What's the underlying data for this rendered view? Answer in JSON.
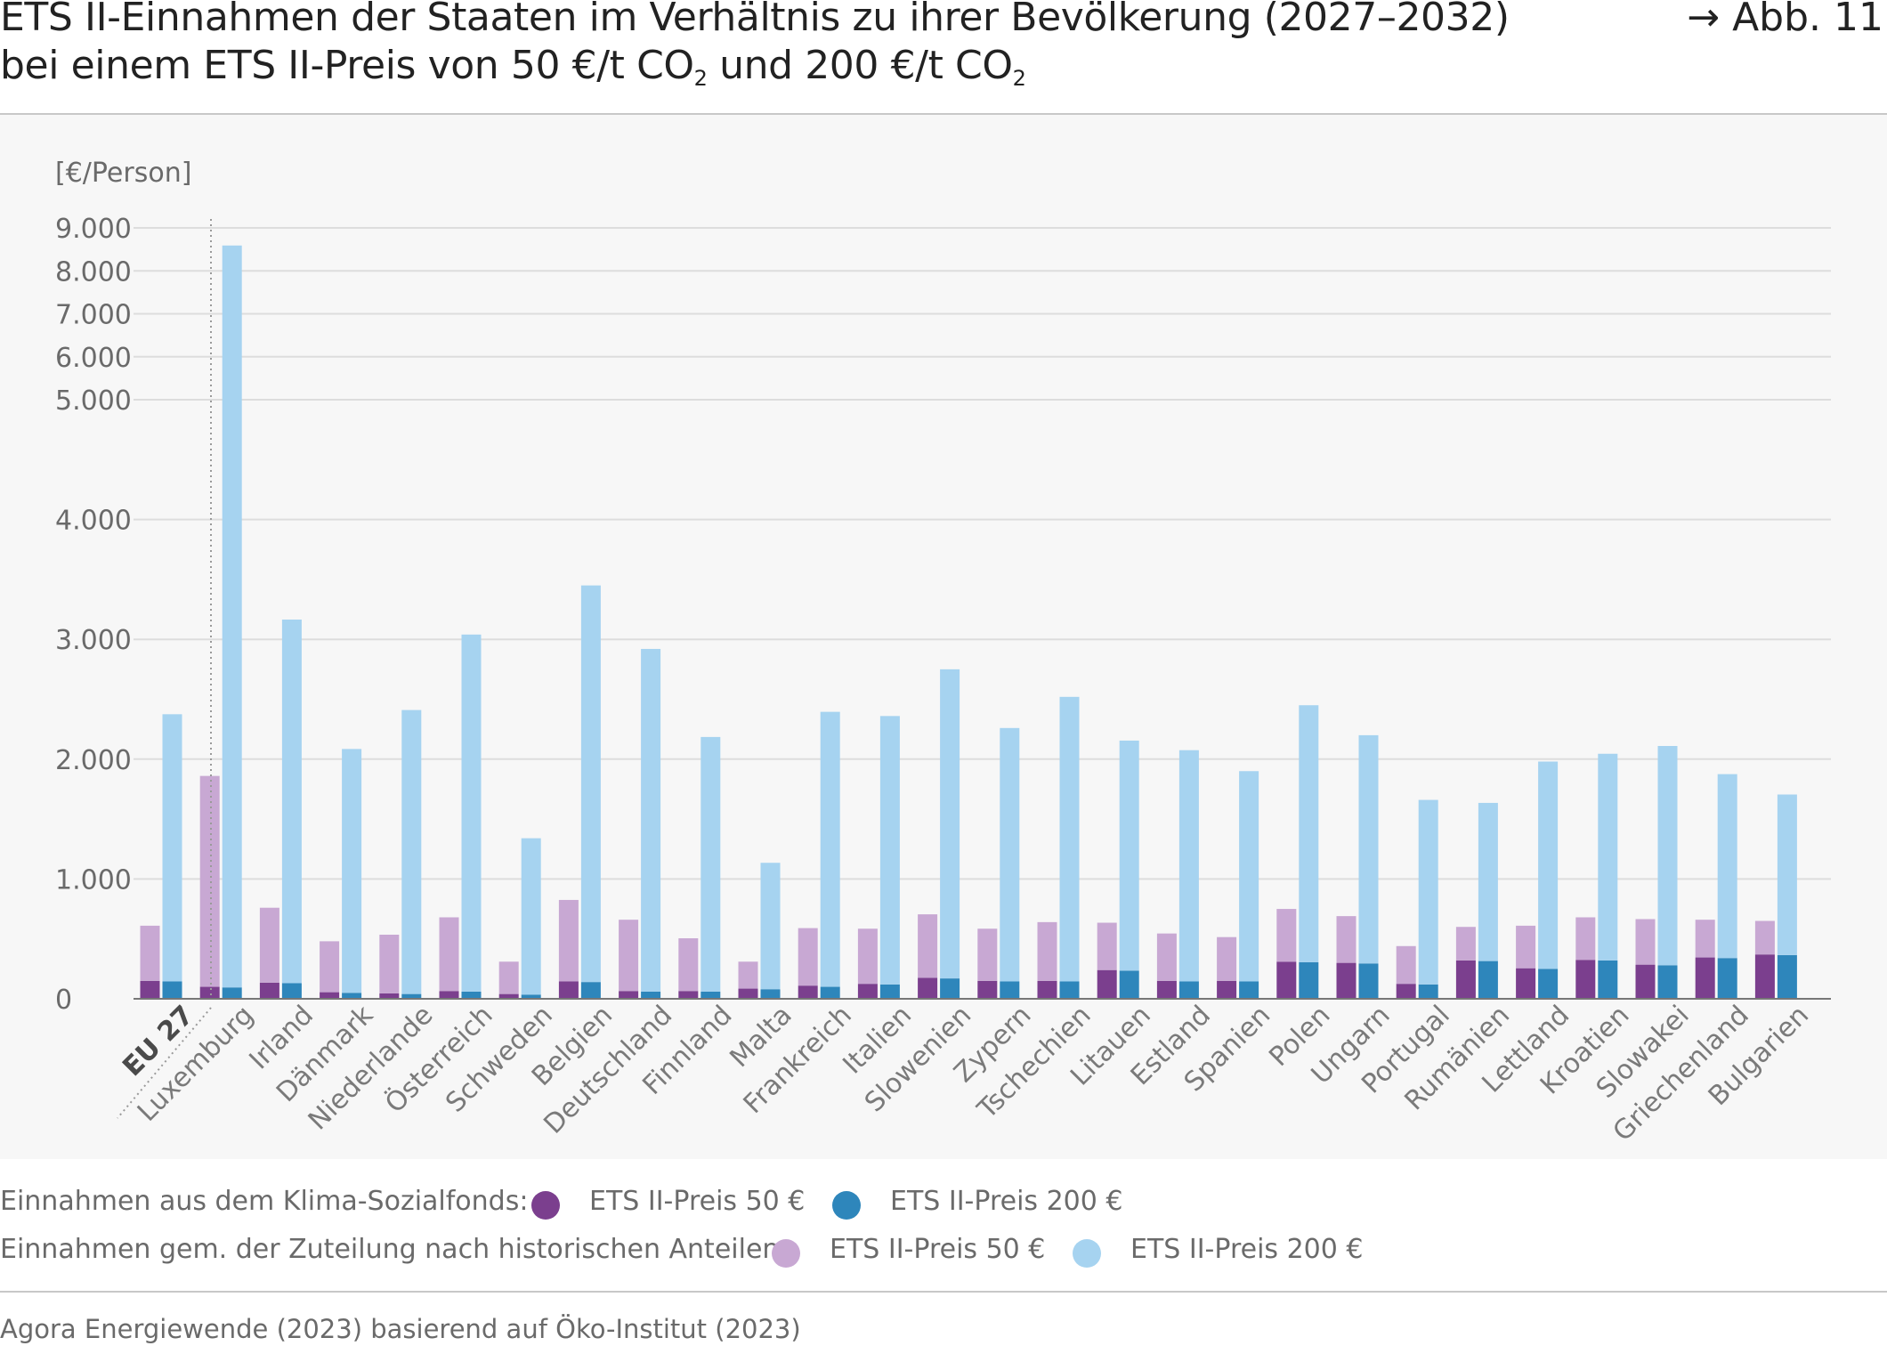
{
  "title": {
    "line1": "ETS II-Einnahmen der Staaten im Verhältnis zu ihrer Bevölkerung (2027–2032)",
    "line2_a": "bei einem ETS II-Preis von 50 €/t CO",
    "line2_sub1": "2",
    "line2_b": " und 200 €/t CO",
    "line2_sub2": "2"
  },
  "figure_ref": "→ Abb. 11",
  "source": "Agora Energiewende (2023) basierend auf Öko-Institut (2023)",
  "legend": {
    "row1_label": "Einnahmen aus dem Klima-Sozialfonds:",
    "row2_label": "Einnahmen gem. der Zuteilung nach historischen Anteilen:",
    "item_50": "ETS II-Preis 50 €",
    "item_200": "ETS II-Preis 200 €"
  },
  "colors": {
    "ksf_50": "#7b3f8e",
    "ksf_200": "#2e86bb",
    "hist_50": "#c8a8d3",
    "hist_200": "#a6d3f0",
    "grid": "#dddddd",
    "axis": "#777777"
  },
  "chart_data": {
    "type": "bar",
    "layout": "grouped-stacked",
    "ylabel": "[€/Person]",
    "y_scale": "piecewise-linear (0–5.000 stretched, 5.000–9.000 compressed)",
    "ylim": [
      0,
      9000
    ],
    "y_ticks": [
      {
        "value": 0,
        "label": "0"
      },
      {
        "value": 1000,
        "label": "1.000"
      },
      {
        "value": 2000,
        "label": "2.000"
      },
      {
        "value": 3000,
        "label": "3.000"
      },
      {
        "value": 4000,
        "label": "4.000"
      },
      {
        "value": 5000,
        "label": "5.000"
      },
      {
        "value": 6000,
        "label": "6.000"
      },
      {
        "value": 7000,
        "label": "7.000"
      },
      {
        "value": 8000,
        "label": "8.000"
      },
      {
        "value": 9000,
        "label": "9.000"
      }
    ],
    "grid": true,
    "legend_position": "bottom",
    "categories": [
      "EU 27",
      "Luxemburg",
      "Irland",
      "Dänmark",
      "Niederlande",
      "Österreich",
      "Schweden",
      "Belgien",
      "Deutschland",
      "Finnland",
      "Malta",
      "Frankreich",
      "Italien",
      "Slowenien",
      "Zypern",
      "Tschechien",
      "Litauen",
      "Estland",
      "Spanien",
      "Polen",
      "Ungarn",
      "Portugal",
      "Rumänien",
      "Lettland",
      "Kroatien",
      "Slowakei",
      "Griechenland",
      "Bulgarien"
    ],
    "series": [
      {
        "name": "Einnahmen aus dem Klima-Sozialfonds: ETS II-Preis 50 €",
        "bar": "50 €",
        "segment": "bottom",
        "values": [
          150,
          100,
          135,
          55,
          45,
          65,
          40,
          145,
          65,
          65,
          85,
          110,
          125,
          175,
          150,
          150,
          240,
          150,
          150,
          310,
          300,
          125,
          320,
          255,
          325,
          285,
          345,
          370
        ]
      },
      {
        "name": "Einnahmen gem. der Zuteilung nach historischen Anteilen: ETS II-Preis 50 €",
        "bar": "50 €",
        "segment": "top",
        "values": [
          460,
          1760,
          625,
          425,
          490,
          615,
          270,
          680,
          595,
          440,
          225,
          480,
          460,
          530,
          435,
          490,
          395,
          395,
          365,
          440,
          390,
          315,
          280,
          355,
          355,
          380,
          315,
          280
        ]
      },
      {
        "name": "Einnahmen aus dem Klima-Sozialfonds: ETS II-Preis 200 €",
        "bar": "200 €",
        "segment": "bottom",
        "values": [
          145,
          95,
          130,
          50,
          40,
          60,
          35,
          140,
          60,
          60,
          80,
          100,
          120,
          170,
          145,
          145,
          235,
          145,
          145,
          305,
          295,
          120,
          315,
          250,
          320,
          280,
          340,
          365
        ]
      },
      {
        "name": "Einnahmen gem. der Zuteilung nach historischen Anteilen: ETS II-Preis 200 €",
        "bar": "200 €",
        "segment": "top",
        "values": [
          2230,
          8495,
          3035,
          2035,
          2370,
          2980,
          1305,
          3310,
          2860,
          2125,
          1055,
          2295,
          2240,
          2580,
          2115,
          2375,
          1920,
          1930,
          1755,
          2145,
          1905,
          1540,
          1320,
          1730,
          1725,
          1830,
          1535,
          1340
        ]
      }
    ]
  }
}
